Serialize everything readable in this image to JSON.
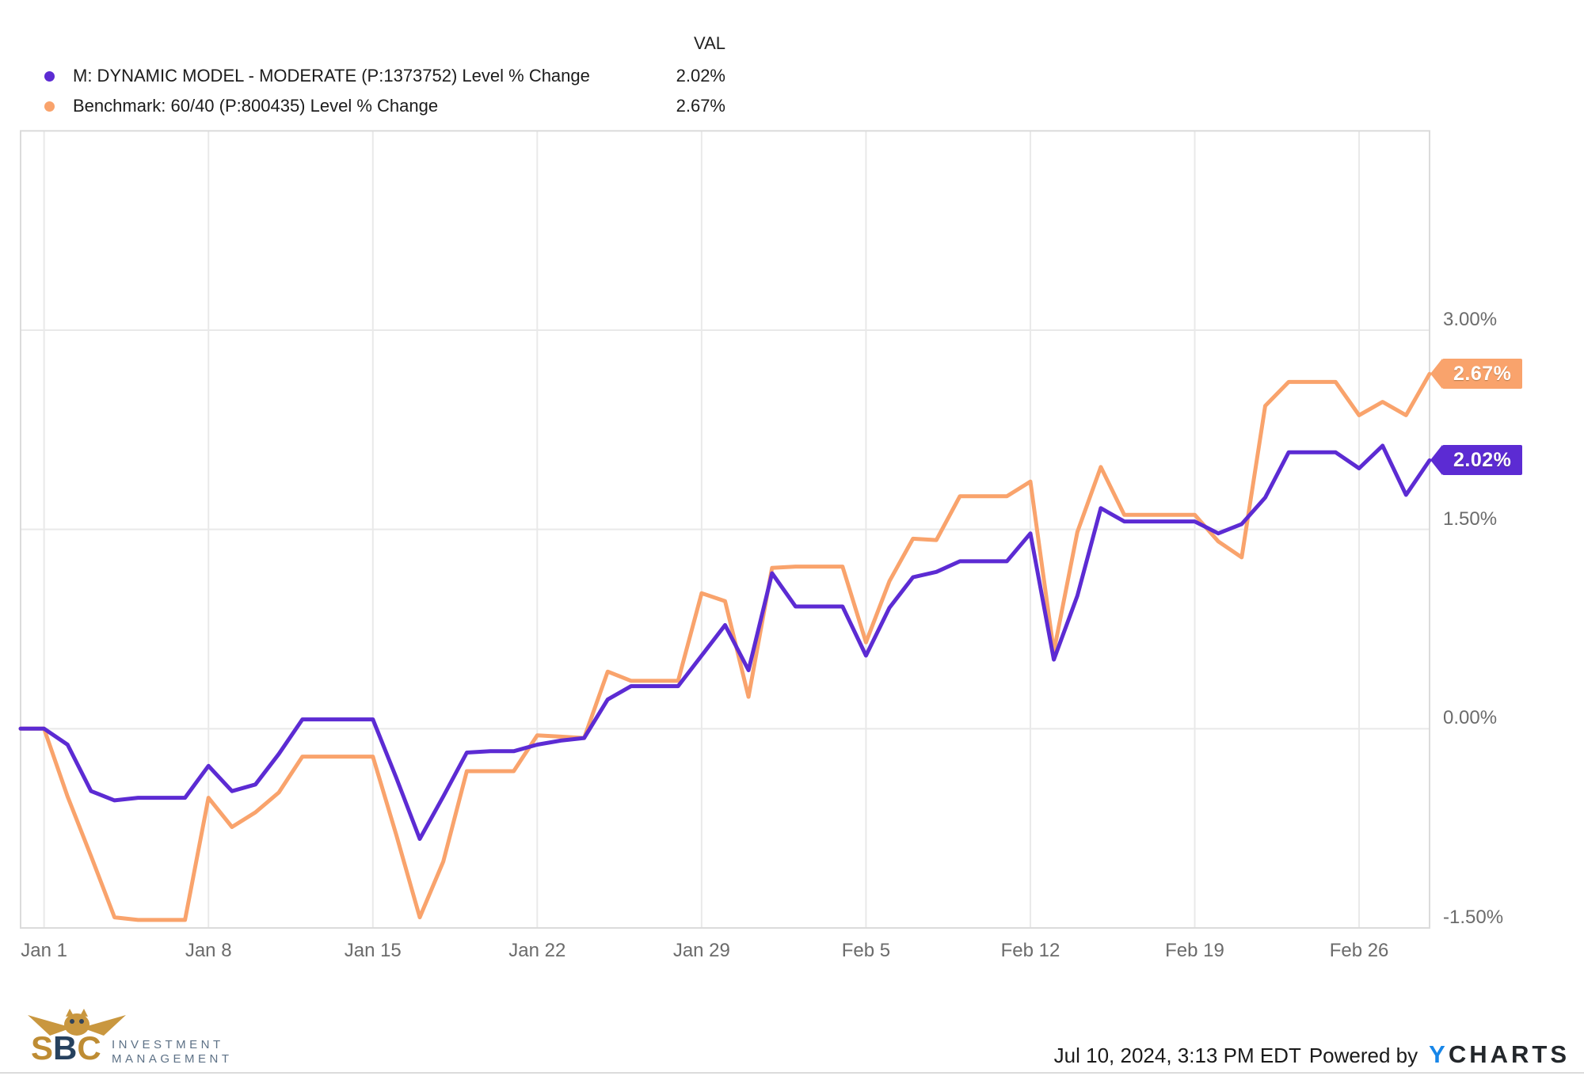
{
  "legend": {
    "val_header": "VAL",
    "rows": [
      {
        "label": "M: DYNAMIC MODEL - MODERATE (P:1373752) Level % Change",
        "value": "2.02%"
      },
      {
        "label": "Benchmark: 60/40 (P:800435) Level % Change",
        "value": "2.67%"
      }
    ]
  },
  "chart_data": {
    "type": "line",
    "title": "",
    "xlabel": "",
    "ylabel": "",
    "legend_position": "top-left",
    "grid": true,
    "ylim": [
      -1.5,
      4.5
    ],
    "x_dates": [
      "Dec 31",
      "Jan 1",
      "Jan 2",
      "Jan 3",
      "Jan 4",
      "Jan 5",
      "Jan 6",
      "Jan 7",
      "Jan 8",
      "Jan 9",
      "Jan 10",
      "Jan 11",
      "Jan 12",
      "Jan 13",
      "Jan 14",
      "Jan 15",
      "Jan 16",
      "Jan 17",
      "Jan 18",
      "Jan 19",
      "Jan 20",
      "Jan 21",
      "Jan 22",
      "Jan 23",
      "Jan 24",
      "Jan 25",
      "Jan 26",
      "Jan 27",
      "Jan 28",
      "Jan 29",
      "Jan 30",
      "Jan 31",
      "Feb 1",
      "Feb 2",
      "Feb 3",
      "Feb 4",
      "Feb 5",
      "Feb 6",
      "Feb 7",
      "Feb 8",
      "Feb 9",
      "Feb 10",
      "Feb 11",
      "Feb 12",
      "Feb 13",
      "Feb 14",
      "Feb 15",
      "Feb 16",
      "Feb 17",
      "Feb 18",
      "Feb 19",
      "Feb 20",
      "Feb 21",
      "Feb 22",
      "Feb 23",
      "Feb 24",
      "Feb 25",
      "Feb 26",
      "Feb 27",
      "Feb 28",
      "Feb 29"
    ],
    "series": [
      {
        "name": "M: DYNAMIC MODEL - MODERATE (P:1373752) Level % Change",
        "color": "#5c2bd3",
        "end_label": "2.02%",
        "values": [
          0.0,
          0.0,
          -0.12,
          -0.47,
          -0.54,
          -0.52,
          -0.52,
          -0.52,
          -0.28,
          -0.47,
          -0.42,
          -0.19,
          0.07,
          0.07,
          0.07,
          0.07,
          -0.37,
          -0.83,
          -0.51,
          -0.18,
          -0.17,
          -0.17,
          -0.12,
          -0.09,
          -0.07,
          0.22,
          0.32,
          0.32,
          0.32,
          0.55,
          0.78,
          0.44,
          1.17,
          0.92,
          0.92,
          0.92,
          0.55,
          0.91,
          1.14,
          1.18,
          1.26,
          1.26,
          1.26,
          1.47,
          0.52,
          1.0,
          1.66,
          1.56,
          1.56,
          1.56,
          1.56,
          1.47,
          1.54,
          1.74,
          2.08,
          2.08,
          2.08,
          1.96,
          2.13,
          1.76,
          2.02
        ]
      },
      {
        "name": "Benchmark: 60/40 (P:800435) Level % Change",
        "color": "#f9a36c",
        "end_label": "2.67%",
        "values": [
          0.0,
          0.0,
          -0.51,
          -0.96,
          -1.42,
          -1.44,
          -1.44,
          -1.44,
          -0.52,
          -0.74,
          -0.63,
          -0.48,
          -0.21,
          -0.21,
          -0.21,
          -0.21,
          -0.8,
          -1.42,
          -1.0,
          -0.32,
          -0.32,
          -0.32,
          -0.05,
          -0.06,
          -0.07,
          0.43,
          0.36,
          0.36,
          0.36,
          1.02,
          0.96,
          0.24,
          1.21,
          1.22,
          1.22,
          1.22,
          0.65,
          1.11,
          1.43,
          1.42,
          1.75,
          1.75,
          1.75,
          1.86,
          0.58,
          1.48,
          1.97,
          1.61,
          1.61,
          1.61,
          1.61,
          1.41,
          1.29,
          2.43,
          2.61,
          2.61,
          2.61,
          2.36,
          2.46,
          2.36,
          2.67
        ]
      }
    ],
    "y_ticks": [
      {
        "label": "3.00%",
        "value": 3.0
      },
      {
        "label": "1.50%",
        "value": 1.5
      },
      {
        "label": "0.00%",
        "value": 0.0
      },
      {
        "label": "-1.50%",
        "value": -1.5
      }
    ],
    "x_ticks": [
      {
        "label": "Jan 1",
        "index": 1
      },
      {
        "label": "Jan 8",
        "index": 8
      },
      {
        "label": "Jan 15",
        "index": 15
      },
      {
        "label": "Jan 22",
        "index": 22
      },
      {
        "label": "Jan 29",
        "index": 29
      },
      {
        "label": "Feb 5",
        "index": 36
      },
      {
        "label": "Feb 12",
        "index": 43
      },
      {
        "label": "Feb 19",
        "index": 50
      },
      {
        "label": "Feb 26",
        "index": 57
      }
    ],
    "colors": {
      "grid": "#e9e9e9",
      "border": "#dbdbdb",
      "axis_text": "#6b6b6b"
    }
  },
  "footer": {
    "timestamp": "Jul 10, 2024, 3:13 PM EDT",
    "powered_by": "Powered by",
    "ycharts_y": "Y",
    "ycharts_rest": "CHARTS",
    "sbc": {
      "s": "S",
      "b": "B",
      "c": "C",
      "line1": "INVESTMENT",
      "line2": "MANAGEMENT"
    }
  }
}
